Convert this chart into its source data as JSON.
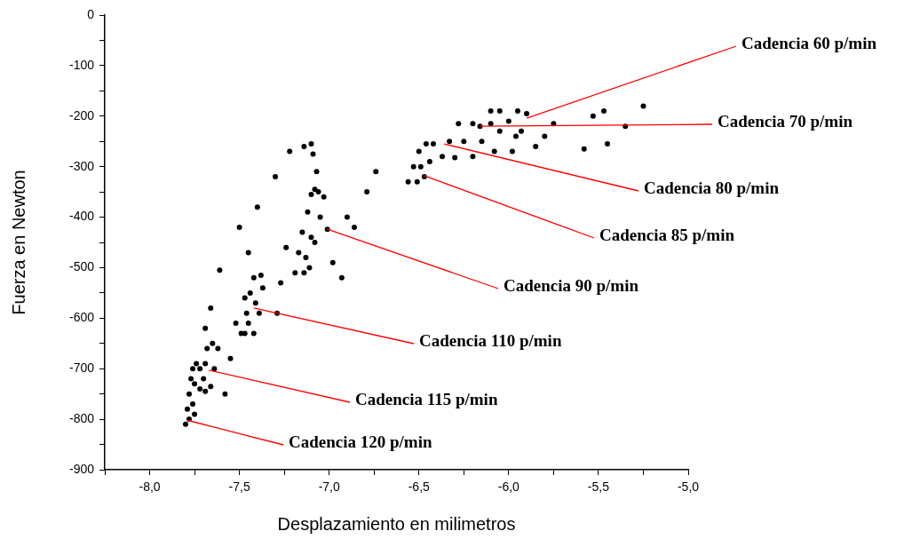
{
  "chart_data": {
    "type": "scatter",
    "xlabel": "Desplazamiento en milimetros",
    "ylabel": "Fuerza en Newton",
    "xlim": [
      -8.25,
      -5
    ],
    "xticks": [
      {
        "value": -8.25,
        "label": null
      },
      {
        "value": -8,
        "label": "-8,0"
      },
      {
        "value": -7.75,
        "label": null
      },
      {
        "value": -7.5,
        "label": "-7,5"
      },
      {
        "value": -7.25,
        "label": null
      },
      {
        "value": -7,
        "label": "-7,0"
      },
      {
        "value": -6.75,
        "label": null
      },
      {
        "value": -6.5,
        "label": "-6,5"
      },
      {
        "value": -6.25,
        "label": null
      },
      {
        "value": -6,
        "label": "-6,0"
      },
      {
        "value": -5.75,
        "label": null
      },
      {
        "value": -5.5,
        "label": "-5,5"
      },
      {
        "value": -5.25,
        "label": null
      },
      {
        "value": -5,
        "label": "-5,0"
      }
    ],
    "ylim": [
      -900,
      0
    ],
    "yticks": [
      -900,
      {
        "value": -850,
        "label": null
      },
      -800,
      {
        "value": -750,
        "label": null
      },
      -700,
      {
        "value": -650,
        "label": null
      },
      -600,
      {
        "value": -550,
        "label": null
      },
      -500,
      {
        "value": -450,
        "label": null
      },
      -400,
      {
        "value": -350,
        "label": null
      },
      -300,
      {
        "value": -250,
        "label": null
      },
      -200,
      {
        "value": -150,
        "label": null
      },
      -100,
      {
        "value": -50,
        "label": null
      },
      0
    ],
    "grid": false,
    "legend": false,
    "marker": "circle",
    "series": [
      {
        "color": "#000000",
        "x": [
          -7.8,
          -7.79,
          -7.78,
          -7.77,
          -7.76,
          -7.74,
          -7.75,
          -7.76,
          -7.78,
          -7.72,
          -7.7,
          -7.69,
          -7.68,
          -7.65,
          -7.62,
          -7.64,
          -7.66,
          -7.69,
          -7.75,
          -7.72,
          -7.69,
          -7.66,
          -7.58,
          -7.55,
          -7.52,
          -7.61,
          -7.47,
          -7.46,
          -7.44,
          -7.42,
          -7.38,
          -7.37,
          -7.39,
          -7.42,
          -7.45,
          -7.41,
          -7.49,
          -7.47,
          -7.45,
          -7.29,
          -7.27,
          -7.24,
          -7.5,
          -7.4,
          -7.3,
          -7.22,
          -7.14,
          -7.1,
          -7.09,
          -7.07,
          -7.08,
          -7.19,
          -7.17,
          -7.15,
          -7.12,
          -7.1,
          -7.06,
          -7.03,
          -7.05,
          -7.08,
          -7.11,
          -7.14,
          -7.1,
          -7.13,
          -6.93,
          -6.86,
          -6.79,
          -6.74,
          -6.98,
          -6.9,
          -6.56,
          -6.53,
          -6.5,
          -6.46,
          -6.42,
          -6.44,
          -6.47,
          -6.51,
          -6.49,
          -6.37,
          -6.33,
          -6.28,
          -6.2,
          -6.1,
          -6.05,
          -6.08,
          -6.2,
          -6.3,
          -6.25,
          -6.15,
          -6.1,
          -6.05,
          -5.95,
          -5.9,
          -5.93,
          -5.98,
          -5.96,
          -6.0,
          -5.85,
          -5.8,
          -5.75,
          -5.58,
          -5.53,
          -5.47,
          -5.45,
          -5.35,
          -5.25,
          -6.16,
          -7.01
        ],
        "values": [
          -810,
          -780,
          -750,
          -720,
          -700,
          -690,
          -730,
          -770,
          -800,
          -740,
          -720,
          -690,
          -660,
          -650,
          -660,
          -700,
          -735,
          -745,
          -790,
          -700,
          -620,
          -580,
          -750,
          -680,
          -610,
          -505,
          -630,
          -590,
          -550,
          -520,
          -515,
          -540,
          -590,
          -630,
          -610,
          -570,
          -630,
          -560,
          -470,
          -590,
          -530,
          -460,
          -420,
          -380,
          -320,
          -270,
          -260,
          -255,
          -275,
          -310,
          -345,
          -510,
          -470,
          -430,
          -390,
          -355,
          -350,
          -360,
          -400,
          -450,
          -500,
          -510,
          -440,
          -480,
          -520,
          -420,
          -350,
          -310,
          -490,
          -400,
          -330,
          -300,
          -270,
          -255,
          -255,
          -290,
          -320,
          -330,
          -300,
          -280,
          -250,
          -215,
          -215,
          -215,
          -230,
          -270,
          -280,
          -282,
          -250,
          -250,
          -190,
          -190,
          -190,
          -195,
          -230,
          -270,
          -240,
          -210,
          -260,
          -240,
          -215,
          -265,
          -200,
          -190,
          -255,
          -220,
          -180,
          -220,
          -424
        ]
      }
    ],
    "annotations": [
      {
        "text": "Cadencia 60 p/min",
        "x": -5.9,
        "y": -204
      },
      {
        "text": "Cadencia 70 p/min",
        "x": -6.16,
        "y": -220
      },
      {
        "text": "Cadencia 80 p/min",
        "x": -6.36,
        "y": -255
      },
      {
        "text": "Cadencia 85 p/min",
        "x": -6.47,
        "y": -318
      },
      {
        "text": "Cadencia 90 p/min",
        "x": -7.01,
        "y": -424
      },
      {
        "text": "Cadencia 110 p/min",
        "x": -7.42,
        "y": -580
      },
      {
        "text": "Cadencia 115 p/min",
        "x": -7.67,
        "y": -703
      },
      {
        "text": "Cadencia 120 p/min",
        "x": -7.79,
        "y": -802
      }
    ]
  }
}
